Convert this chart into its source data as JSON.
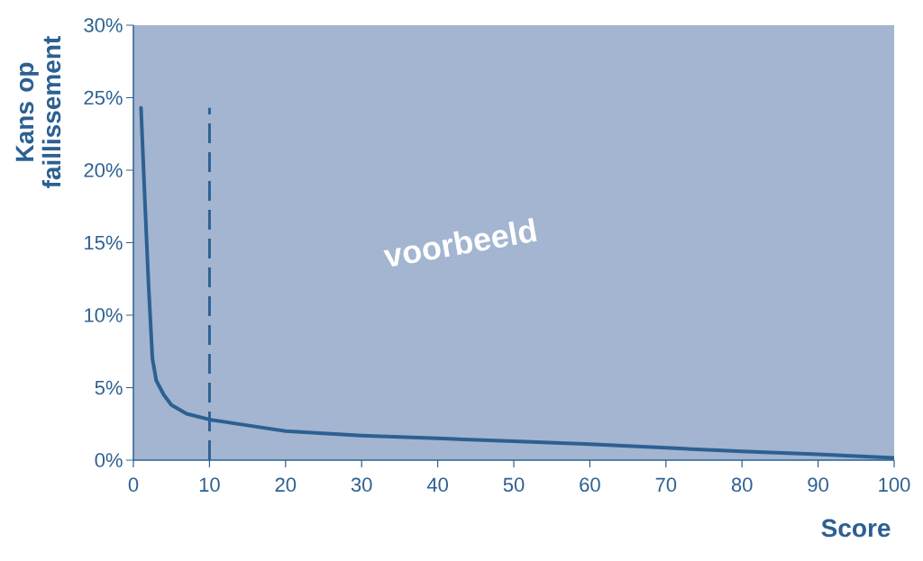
{
  "chart_data": {
    "type": "line",
    "xlabel": "Score",
    "ylabel": "Kans op faillissement",
    "x": [
      1,
      1.5,
      2,
      2.5,
      3,
      4,
      5,
      7,
      10,
      15,
      20,
      30,
      40,
      50,
      60,
      70,
      80,
      90,
      100
    ],
    "values": [
      24.3,
      18,
      12,
      7,
      5.5,
      4.5,
      3.8,
      3.2,
      2.8,
      2.4,
      2.0,
      1.7,
      1.5,
      1.3,
      1.1,
      0.85,
      0.6,
      0.4,
      0.15
    ],
    "color": "#2d6092",
    "marker": "none",
    "line_style": "solid",
    "xlim": [
      0,
      100
    ],
    "xticks": [
      0,
      10,
      20,
      30,
      40,
      50,
      60,
      70,
      80,
      90,
      100
    ],
    "ylim": [
      0,
      30
    ],
    "yticks": [
      {
        "value": 0,
        "label": "0%"
      },
      {
        "value": 5,
        "label": "5%"
      },
      {
        "value": 10,
        "label": "10%"
      },
      {
        "value": 15,
        "label": "15%"
      },
      {
        "value": 20,
        "label": "20%"
      },
      {
        "value": 25,
        "label": "25%"
      },
      {
        "value": 30,
        "label": "30%"
      }
    ],
    "ref_lines": [
      {
        "axis": "x",
        "value": 10,
        "color": "#2d6092",
        "line_style": "dashed"
      }
    ],
    "annotations": [
      "voorbeeld"
    ],
    "grid": false
  }
}
